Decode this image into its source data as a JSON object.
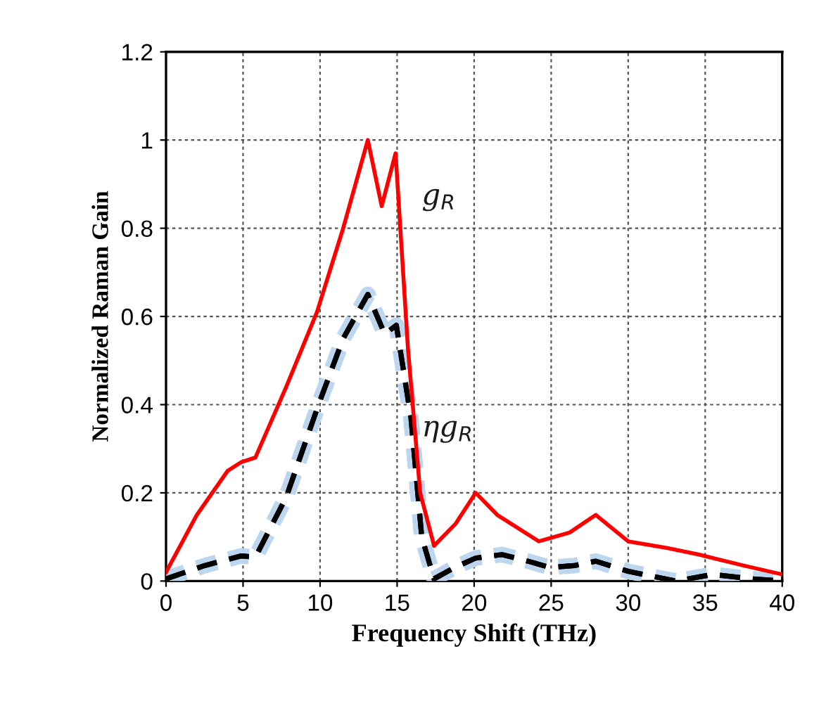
{
  "chart_data": {
    "type": "line",
    "xlabel": "Frequency Shift (THz)",
    "ylabel": "Normalized Raman Gain",
    "xlim": [
      0,
      40
    ],
    "ylim": [
      0,
      1.2
    ],
    "xticks": [
      0,
      5,
      10,
      15,
      20,
      25,
      30,
      35,
      40
    ],
    "yticks": [
      0,
      0.2,
      0.4,
      0.6,
      0.8,
      1,
      1.2
    ],
    "grid": true,
    "series": [
      {
        "name": "g$_{R}$",
        "color": "#ff0000",
        "line_style": "solid",
        "x": [
          0,
          2,
          4,
          4.9,
          5.8,
          7.8,
          9.8,
          11.5,
          13.1,
          14.0,
          14.9,
          15.7,
          16.5,
          17.4,
          18.8,
          20.1,
          21.5,
          24.2,
          26.2,
          27.9,
          30.0,
          32.5,
          34.6,
          37.5,
          40
        ],
        "values": [
          0.02,
          0.15,
          0.25,
          0.27,
          0.28,
          0.44,
          0.61,
          0.8,
          1.0,
          0.85,
          0.97,
          0.53,
          0.2,
          0.08,
          0.13,
          0.2,
          0.15,
          0.09,
          0.11,
          0.15,
          0.09,
          0.075,
          0.06,
          0.035,
          0.015
        ]
      },
      {
        "name": "ηg$_{R}$",
        "color": "#000000",
        "line_style": "dashed",
        "x": [
          0,
          2.5,
          4.9,
          5.8,
          7.8,
          9.9,
          11.5,
          13.1,
          14.2,
          14.95,
          15.9,
          16.6,
          17.4,
          18.7,
          20.1,
          21.8,
          23.5,
          24.9,
          26.5,
          27.9,
          30.0,
          33.1,
          35.5,
          38,
          40
        ],
        "values": [
          0.005,
          0.035,
          0.057,
          0.054,
          0.19,
          0.4,
          0.55,
          0.65,
          0.56,
          0.58,
          0.37,
          0.1,
          0.005,
          0.03,
          0.052,
          0.06,
          0.045,
          0.031,
          0.035,
          0.045,
          0.022,
          0.0,
          0.015,
          0.005,
          0.0
        ]
      }
    ]
  }
}
